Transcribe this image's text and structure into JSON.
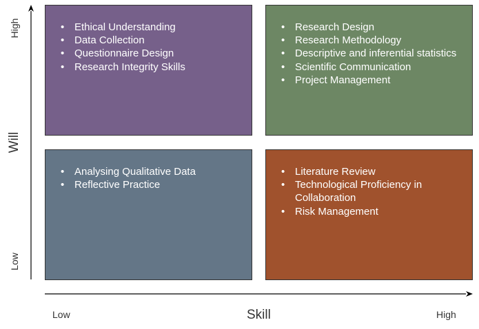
{
  "quadrants": {
    "top_left": {
      "items": [
        "Ethical Understanding",
        "Data Collection",
        "Questionnaire Design",
        "Research Integrity Skills"
      ]
    },
    "top_right": {
      "items": [
        "Research Design",
        "Research Methodology",
        "Descriptive and inferential statistics",
        "Scientific Communication",
        "Project Management"
      ]
    },
    "bottom_left": {
      "items": [
        "Analysing Qualitative Data",
        "Reflective Practice"
      ]
    },
    "bottom_right": {
      "items": [
        "Literature Review",
        "Technological Proficiency in Collaboration",
        "Risk Management"
      ]
    }
  },
  "x_axis": {
    "label": "Skill",
    "low": "Low",
    "high": "High"
  },
  "y_axis": {
    "label": "Will",
    "low": "Low",
    "high": "High"
  },
  "colors": {
    "top_left": "#76608a",
    "top_right": "#6d8764",
    "bottom_left": "#647687",
    "bottom_right": "#a0522d",
    "axis": "#000000"
  }
}
